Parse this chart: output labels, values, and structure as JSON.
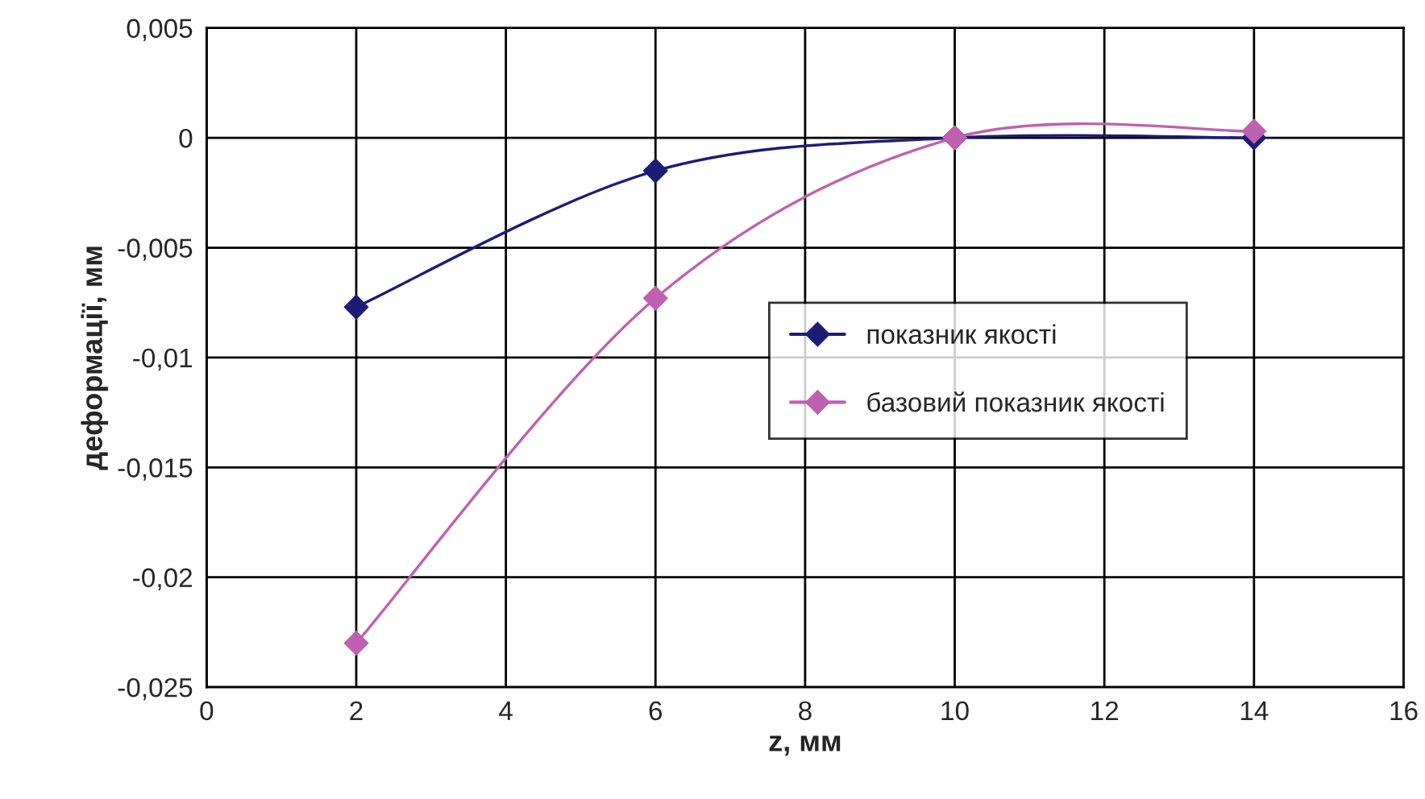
{
  "chart_data": {
    "type": "line",
    "xlabel": "z, мм",
    "ylabel": "деформації, мм",
    "x": [
      2,
      6,
      10,
      14
    ],
    "series": [
      {
        "name": "показник якості",
        "color": "#1c1c78",
        "values": [
          -0.0077,
          -0.0015,
          0,
          0
        ]
      },
      {
        "name": "базовий показник якості",
        "color": "#c060b0",
        "values": [
          -0.023,
          -0.0073,
          0,
          0.0003
        ]
      }
    ],
    "xlim": [
      0,
      16
    ],
    "xticks": [
      0,
      2,
      4,
      6,
      8,
      10,
      12,
      14,
      16
    ],
    "ylim": [
      -0.025,
      0.005
    ],
    "yticks": [
      {
        "value": -0.025,
        "label": "-0,025"
      },
      {
        "value": -0.02,
        "label": "-0,02"
      },
      {
        "value": -0.015,
        "label": "-0,015"
      },
      {
        "value": -0.01,
        "label": "-0,01"
      },
      {
        "value": -0.005,
        "label": "-0,005"
      },
      {
        "value": 0,
        "label": "0"
      },
      {
        "value": 0.005,
        "label": "0,005"
      }
    ],
    "grid": true,
    "legend": "center right",
    "marker": "diamond",
    "line_style": "solid"
  }
}
